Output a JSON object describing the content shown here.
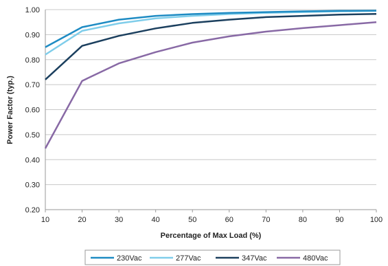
{
  "chart_data": {
    "type": "line",
    "xlabel": "Percentage of Max Load (%)",
    "ylabel": "Power Factor (typ.)",
    "x": [
      10,
      20,
      30,
      40,
      50,
      60,
      70,
      80,
      90,
      100
    ],
    "xlim": [
      10,
      100
    ],
    "ylim": [
      0.2,
      1.0
    ],
    "x_ticks": [
      10,
      20,
      30,
      40,
      50,
      60,
      70,
      80,
      90,
      100
    ],
    "y_ticks": [
      "0.20",
      "0.30",
      "0.40",
      "0.50",
      "0.60",
      "0.70",
      "0.80",
      "0.90",
      "1.00"
    ],
    "grid": "horizontal",
    "legend_position": "bottom",
    "series": [
      {
        "name": "230Vac",
        "color": "#1e8bc3",
        "values": [
          0.85,
          0.93,
          0.96,
          0.975,
          0.982,
          0.987,
          0.99,
          0.993,
          0.995,
          0.996
        ]
      },
      {
        "name": "277Vac",
        "color": "#7fcdea",
        "values": [
          0.82,
          0.915,
          0.945,
          0.965,
          0.975,
          0.982,
          0.987,
          0.99,
          0.993,
          0.995
        ]
      },
      {
        "name": "347Vac",
        "color": "#1b3f5e",
        "values": [
          0.72,
          0.855,
          0.895,
          0.925,
          0.947,
          0.96,
          0.97,
          0.975,
          0.98,
          0.983
        ]
      },
      {
        "name": "480Vac",
        "color": "#8869a5",
        "values": [
          0.445,
          0.715,
          0.785,
          0.83,
          0.868,
          0.893,
          0.912,
          0.926,
          0.938,
          0.95
        ]
      }
    ]
  }
}
